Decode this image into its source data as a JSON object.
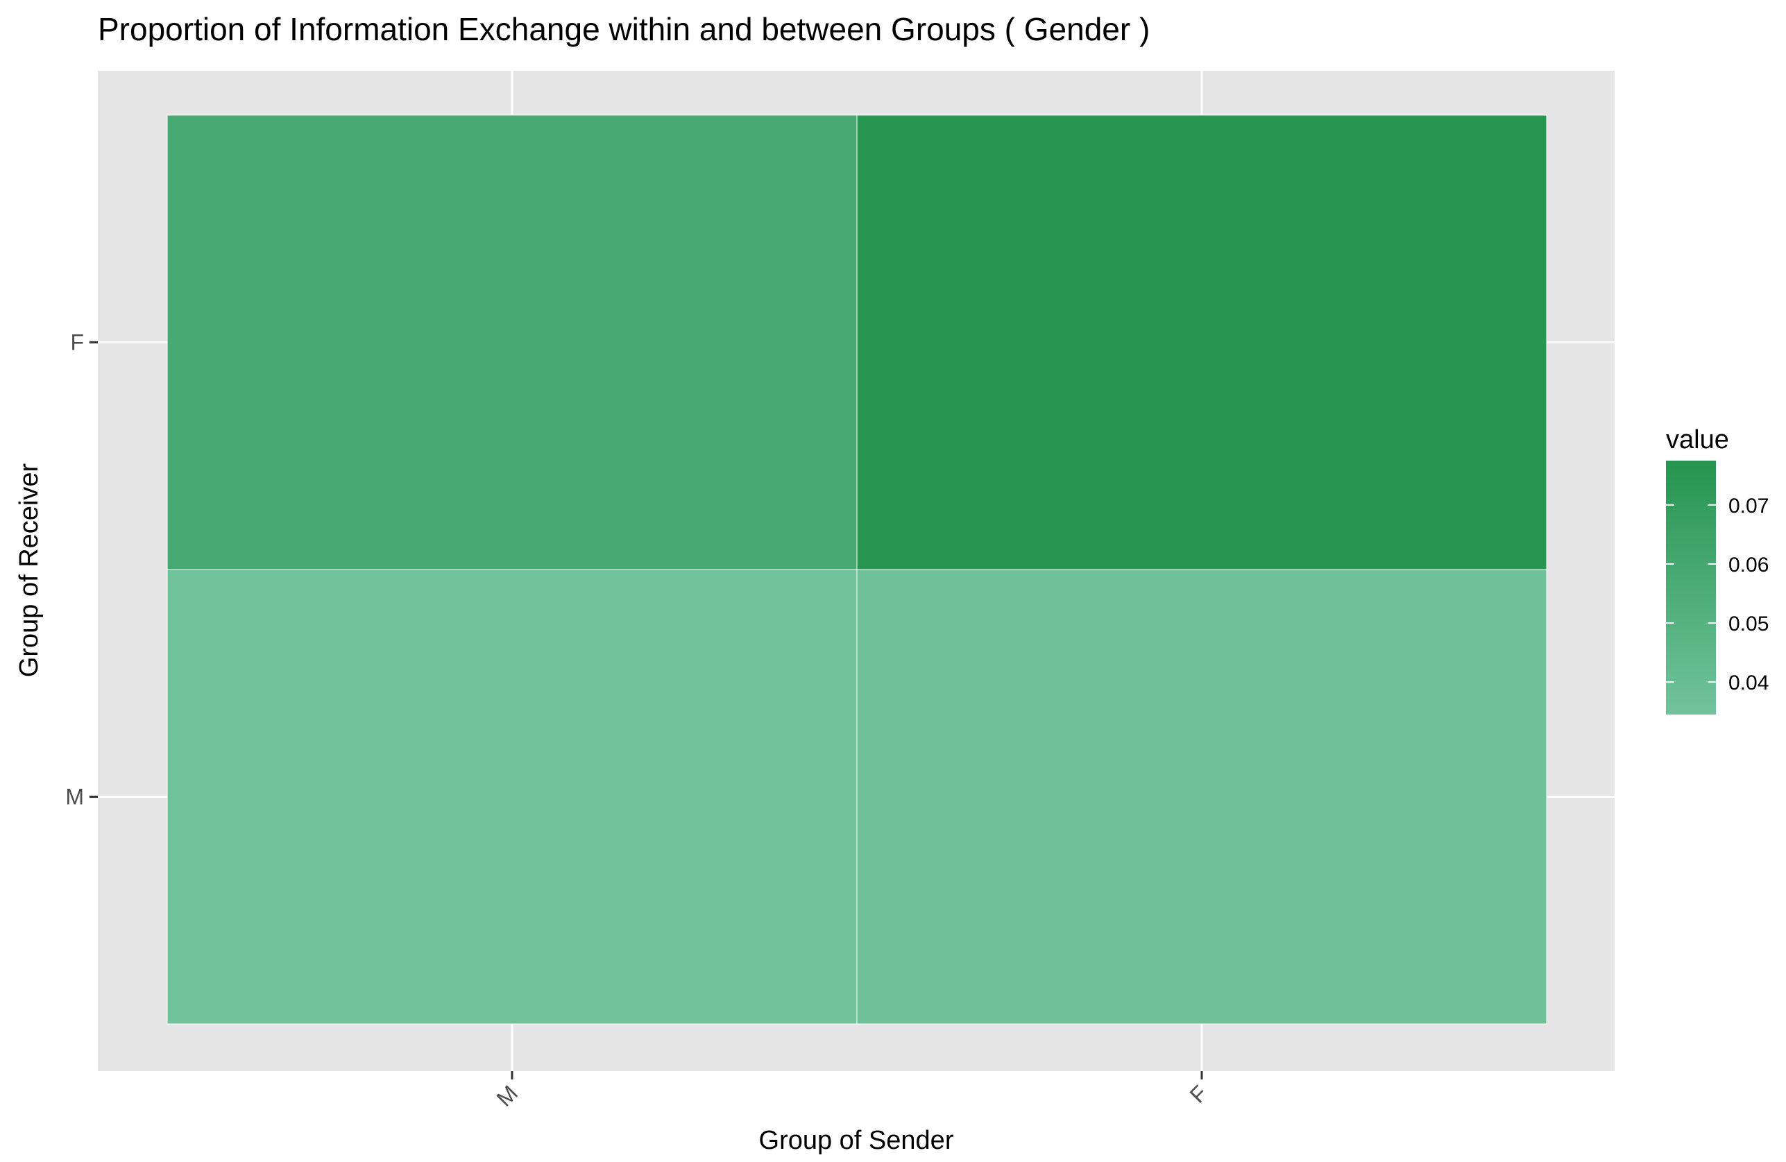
{
  "chart_data": {
    "type": "heatmap",
    "title": "Proportion of  Information Exchange within and between Groups ( Gender )",
    "xlabel": "Group of Sender",
    "ylabel": "Group of Receiver",
    "x_categories": [
      "M",
      "F"
    ],
    "y_categories": [
      "M",
      "F"
    ],
    "cells": [
      {
        "x": "M",
        "y": "F",
        "value": 0.058
      },
      {
        "x": "F",
        "y": "F",
        "value": 0.077
      },
      {
        "x": "M",
        "y": "M",
        "value": 0.0355
      },
      {
        "x": "F",
        "y": "M",
        "value": 0.036
      }
    ],
    "legend": {
      "title": "value",
      "position": "right",
      "ticks": [
        0.04,
        0.05,
        0.06,
        0.07
      ],
      "tick_labels": [
        "0.04",
        "0.05",
        "0.06",
        "0.07"
      ],
      "range": [
        0.0345,
        0.0775
      ]
    },
    "colors": {
      "low": "#72C39D",
      "high": "#26954F",
      "panel_background": "#E5E5E5",
      "grid": "#FFFFFF",
      "tile_border": "#FFFFFF"
    },
    "grid": true
  }
}
